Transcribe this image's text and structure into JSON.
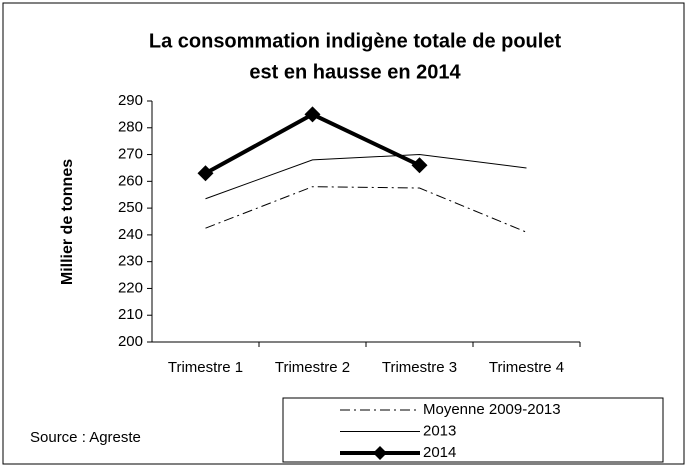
{
  "chart_data": {
    "type": "line",
    "title": "La consommation indigène totale de poulet",
    "subtitle": "est en hausse en 2014",
    "ylabel": "Millier de tonnes",
    "source": "Source : Agreste",
    "categories": [
      "Trimestre 1",
      "Trimestre 2",
      "Trimestre 3",
      "Trimestre 4"
    ],
    "series": [
      {
        "name": "Moyenne 2009-2013",
        "color": "#000000",
        "line_style": "dashdot",
        "line_width": 1,
        "values": [
          242.5,
          258,
          257.5,
          241
        ]
      },
      {
        "name": "2013",
        "color": "#000000",
        "line_style": "solid",
        "line_width": 1,
        "values": [
          253.5,
          268,
          270,
          265
        ]
      },
      {
        "name": "2014",
        "color": "#000000",
        "line_style": "solid",
        "line_width": 4,
        "marker": "diamond",
        "values": [
          263,
          285,
          266,
          null
        ]
      }
    ],
    "ylim": [
      200,
      290
    ],
    "yticks": [
      200,
      210,
      220,
      230,
      240,
      250,
      260,
      270,
      280,
      290
    ],
    "grid": false
  }
}
